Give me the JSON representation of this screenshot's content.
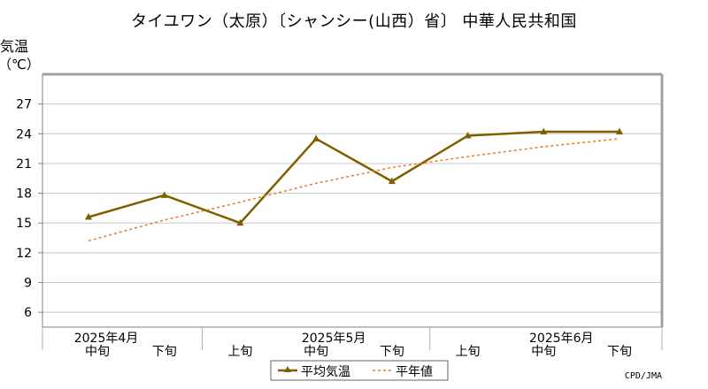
{
  "chart_data": {
    "type": "line",
    "title": "タイユワン（太原）〔シャンシー(山西）省〕 中華人民共和国",
    "ylabel": "気温",
    "yunit": "（℃）",
    "ylim": [
      4.5,
      30
    ],
    "yticks": [
      6,
      9,
      12,
      15,
      18,
      21,
      24,
      27
    ],
    "grid": true,
    "x": [
      "中旬",
      "下旬",
      "上旬",
      "中旬",
      "下旬",
      "上旬",
      "中旬",
      "下旬"
    ],
    "month_labels": [
      {
        "label": "2025年4月",
        "x_index": 0
      },
      {
        "label": "2025年5月",
        "x_index": 3
      },
      {
        "label": "2025年6月",
        "x_index": 6
      }
    ],
    "month_separators_after_index": [
      1,
      4
    ],
    "series": [
      {
        "name": "平均気温",
        "color": "#7f6000",
        "style": "solid-marker",
        "values": [
          15.6,
          17.8,
          15.0,
          23.5,
          19.2,
          23.8,
          24.2,
          24.2
        ]
      },
      {
        "name": "平年値",
        "color": "#ee7722",
        "style": "dotted",
        "values": [
          13.2,
          15.3,
          17.1,
          19.0,
          20.6,
          21.7,
          22.7,
          23.5
        ]
      }
    ],
    "legend": "bottom-center"
  },
  "footer": "CPD/JMA"
}
